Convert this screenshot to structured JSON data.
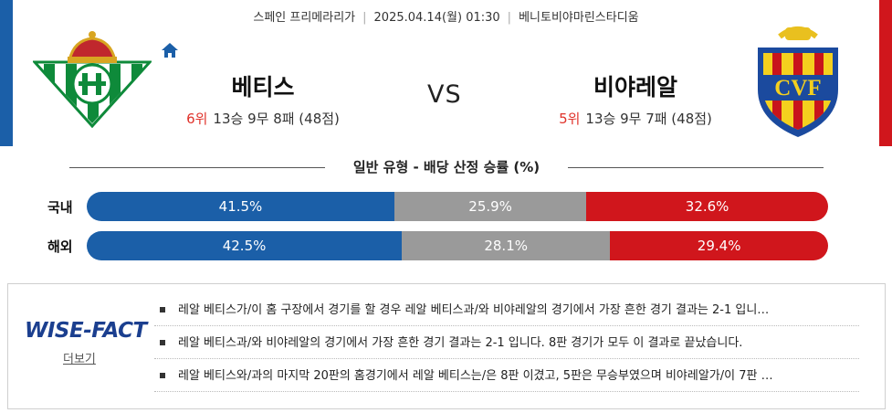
{
  "match": {
    "league": "스페인 프리메라리가",
    "datetime": "2025.04.14(월) 01:30",
    "venue": "베니토비야마린스타디움"
  },
  "home": {
    "name": "베티스",
    "rank": "6위",
    "record": "13승 9무 8패 (48점)",
    "color": "#1b5fa8"
  },
  "away": {
    "name": "비야레알",
    "rank": "5위",
    "record": "13승 9무 7패 (48점)",
    "color": "#d0161c",
    "crest_text": "CVF"
  },
  "vs_label": "VS",
  "odds_section": {
    "title": "일반 유형 - 배당 산정 승률 (%)",
    "rows": [
      {
        "label": "국내",
        "home": "41.5%",
        "draw": "25.9%",
        "away": "32.6%",
        "home_pct": 41.5,
        "draw_pct": 25.9,
        "away_pct": 32.6
      },
      {
        "label": "해외",
        "home": "42.5%",
        "draw": "28.1%",
        "away": "29.4%",
        "home_pct": 42.5,
        "draw_pct": 28.1,
        "away_pct": 29.4
      }
    ]
  },
  "wise_fact": {
    "logo": "WISE-FACT",
    "more_label": "더보기",
    "facts": [
      "레알 베티스가/이 홈 구장에서 경기를 할 경우 레알 베티스과/와 비야레알의 경기에서 가장 흔한 경기 결과는 2-1 입니…",
      "레알 베티스과/와 비야레알의 경기에서 가장 흔한 경기 결과는 2-1 입니다. 8판 경기가 모두 이 결과로 끝났습니다.",
      "레알 베티스와/과의 마지막 20판의 홈경기에서 레알 베티스는/은 8판 이겼고, 5판은 무승부였으며 비야레알가/이 7판 …"
    ]
  }
}
